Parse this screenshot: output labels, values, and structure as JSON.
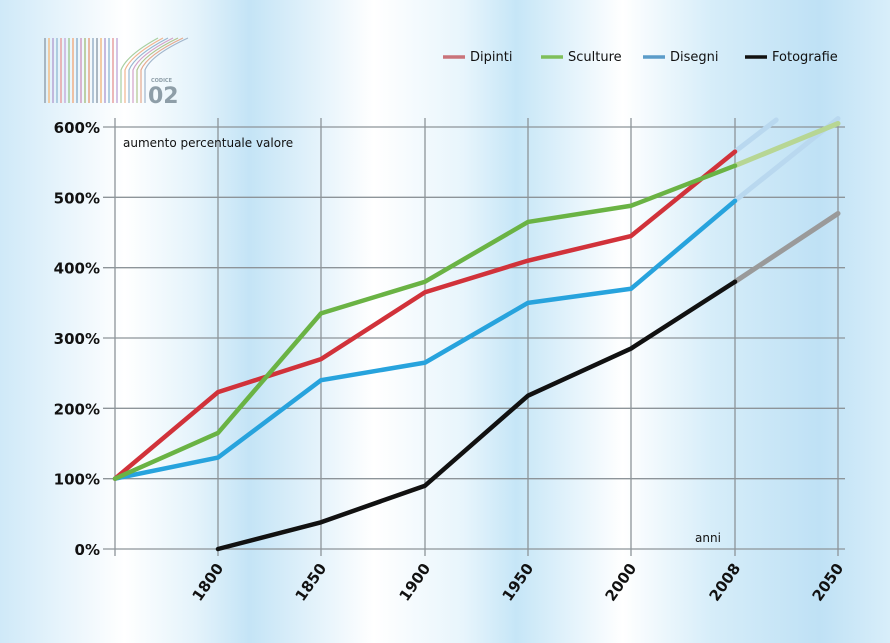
{
  "logo": {
    "small_text": "CODICE",
    "number": "02"
  },
  "chart_data": {
    "type": "line",
    "title": "",
    "ylabel": "aumento percentuale valore",
    "xlabel": "anni",
    "x_categories": [
      "",
      "1800",
      "1850",
      "1900",
      "1950",
      "2000",
      "2008",
      "2050"
    ],
    "projection_label": "2050",
    "yticks": [
      "0%",
      "100%",
      "200%",
      "300%",
      "400%",
      "500%",
      "600%"
    ],
    "ylim": [
      0,
      600
    ],
    "grid": true,
    "legend_position": "top-right",
    "series": [
      {
        "name": "Dipinti",
        "color": "#d1323a",
        "legend_color": "#c9737a",
        "values": [
          100,
          223,
          270,
          365,
          410,
          445,
          565
        ],
        "projection": {
          "to_index": 6.4,
          "value": 610,
          "color": "#b9d8ef"
        }
      },
      {
        "name": "Sculture",
        "color": "#6ab344",
        "legend_color": "#7fbf5a",
        "values": [
          100,
          165,
          335,
          380,
          465,
          488,
          545
        ],
        "projection": {
          "to_index": 7,
          "value": 605,
          "color": "#b7d694"
        }
      },
      {
        "name": "Disegni",
        "color": "#27a3dd",
        "legend_color": "#5b9cc9",
        "values": [
          100,
          130,
          240,
          265,
          350,
          370,
          495
        ],
        "projection": {
          "to_index": 7,
          "value": 612,
          "color": "#b9d8ef"
        }
      },
      {
        "name": "Fotografie",
        "color": "#111111",
        "legend_color": "#111111",
        "values": [
          null,
          0,
          38,
          90,
          218,
          285,
          380
        ],
        "projection": {
          "to_index": 7,
          "value": 477,
          "color": "#9a9a9a"
        }
      }
    ]
  }
}
